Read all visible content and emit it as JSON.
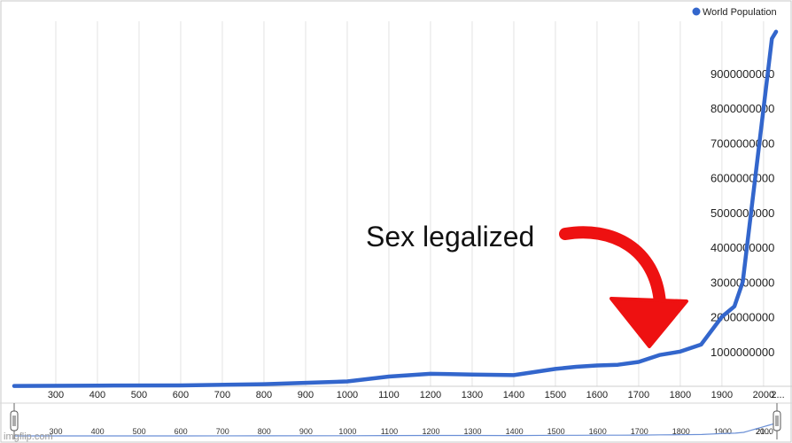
{
  "chart_data": {
    "type": "line",
    "title": "",
    "xlabel": "",
    "ylabel": "",
    "xlim": [
      200,
      2030
    ],
    "ylim": [
      0,
      10500000000
    ],
    "grid": true,
    "legend": {
      "placement": "top-right",
      "entries": [
        "World Population"
      ]
    },
    "x_ticks": [
      300,
      400,
      500,
      600,
      700,
      800,
      900,
      1000,
      1100,
      1200,
      1300,
      1400,
      1500,
      1600,
      1700,
      1800,
      1900,
      2000,
      "2..."
    ],
    "y_ticks": [
      1000000000,
      2000000000,
      3000000000,
      4000000000,
      5000000000,
      6000000000,
      7000000000,
      8000000000,
      9000000000
    ],
    "navigator_ticks": [
      300,
      400,
      500,
      600,
      700,
      800,
      900,
      1000,
      1100,
      1200,
      1300,
      1400,
      1500,
      1600,
      1700,
      1800,
      1900,
      2000,
      "21..."
    ],
    "series": [
      {
        "name": "World Population",
        "color": "#3366cc",
        "x": [
          200,
          400,
          600,
          800,
          1000,
          1100,
          1200,
          1300,
          1400,
          1500,
          1550,
          1600,
          1650,
          1700,
          1750,
          1800,
          1850,
          1900,
          1930,
          1950,
          1960,
          1970,
          1980,
          1990,
          2000,
          2010,
          2020,
          2030
        ],
        "y": [
          10000000,
          20000000,
          25000000,
          60000000,
          140000000,
          280000000,
          360000000,
          340000000,
          320000000,
          500000000,
          560000000,
          600000000,
          620000000,
          700000000,
          900000000,
          1000000000,
          1200000000,
          2000000000,
          2300000000,
          3000000000,
          4000000000,
          5000000000,
          6000000000,
          7000000000,
          8000000000,
          9000000000,
          10000000000,
          10200000000
        ]
      }
    ],
    "annotations": [
      {
        "text": "Sex legalized",
        "arrow_color": "#ee1111"
      }
    ],
    "watermark": "imgflip.com"
  }
}
